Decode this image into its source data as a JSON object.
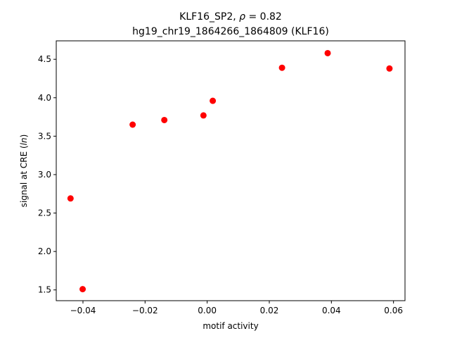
{
  "chart_data": {
    "type": "scatter",
    "title_line1_prefix": "KLF16_SP2, ",
    "title_line1_rho": "ρ",
    "title_line1_suffix": " = 0.82",
    "title_line2": "hg19_chr19_1864266_1864809 (KLF16)",
    "xlabel": "motif activity",
    "ylabel_prefix": "signal at CRE (",
    "ylabel_italic": "ln",
    "ylabel_suffix": ")",
    "xlim": [
      -0.0486,
      0.0637
    ],
    "ylim": [
      1.36,
      4.74
    ],
    "x_ticks": [
      -0.04,
      -0.02,
      0.0,
      0.02,
      0.04,
      0.06
    ],
    "x_tick_labels": [
      "−0.04",
      "−0.02",
      "0.00",
      "0.02",
      "0.04",
      "0.06"
    ],
    "y_ticks": [
      1.5,
      2.0,
      2.5,
      3.0,
      3.5,
      4.0,
      4.5
    ],
    "y_tick_labels": [
      "1.5",
      "2.0",
      "2.5",
      "3.0",
      "3.5",
      "4.0",
      "4.5"
    ],
    "grid": false,
    "marker_color": "#ff0000",
    "points": [
      {
        "x": -0.044,
        "y": 2.69
      },
      {
        "x": -0.0401,
        "y": 1.51
      },
      {
        "x": -0.024,
        "y": 3.65
      },
      {
        "x": -0.0138,
        "y": 3.71
      },
      {
        "x": -0.0012,
        "y": 3.77
      },
      {
        "x": 0.0018,
        "y": 3.96
      },
      {
        "x": 0.0241,
        "y": 4.39
      },
      {
        "x": 0.0388,
        "y": 4.58
      },
      {
        "x": 0.0587,
        "y": 4.38
      }
    ]
  }
}
